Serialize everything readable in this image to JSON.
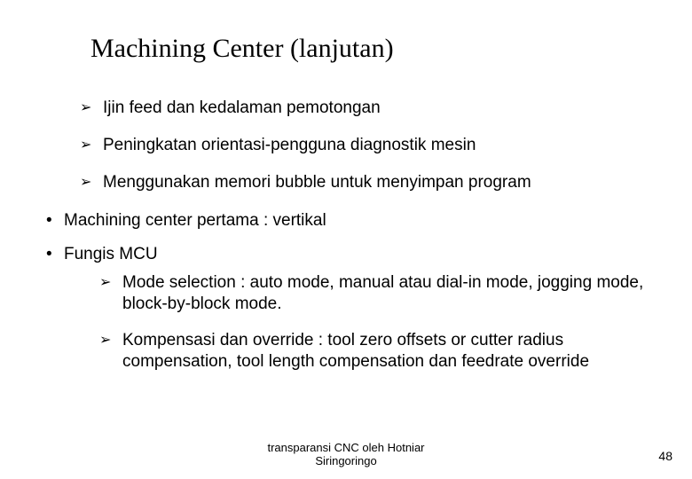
{
  "title": "Machining Center (lanjutan)",
  "arrows_top": [
    "Ijin feed dan kedalaman pemotongan",
    "Peningkatan orientasi-pengguna diagnostik mesin",
    "Menggunakan memori bubble untuk menyimpan program"
  ],
  "bullets": [
    "Machining center pertama : vertikal",
    "Fungis MCU"
  ],
  "arrows_bottom": [
    "Mode selection : auto mode, manual atau dial-in mode, jogging mode, block-by-block mode.",
    "Kompensasi dan override : tool zero offsets or cutter radius compensation, tool length compensation dan feedrate override"
  ],
  "footer_line1": "transparansi CNC oleh Hotniar",
  "footer_line2": "Siringoringo",
  "page_number": "48"
}
